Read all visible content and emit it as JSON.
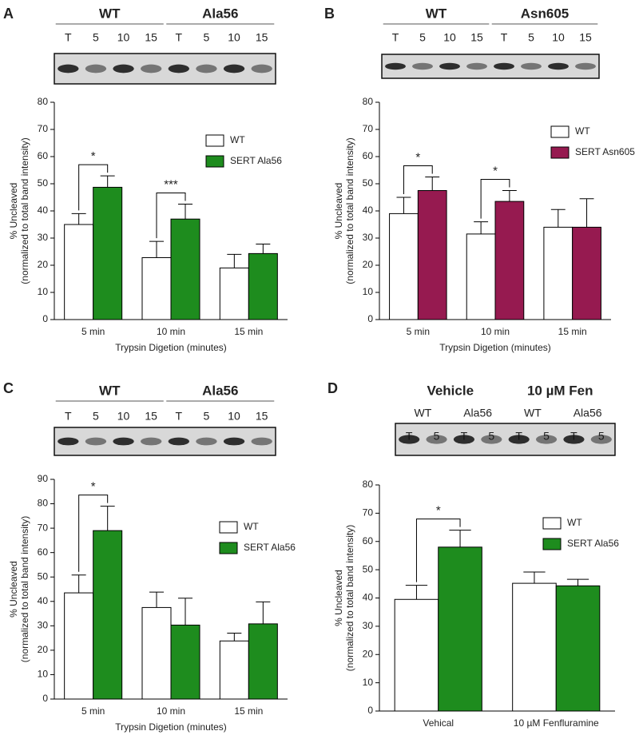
{
  "chart_data": [
    {
      "type": "bar",
      "panel": "A",
      "blot": {
        "groups": [
          {
            "label": "WT",
            "lanes": [
              "T",
              "5",
              "10",
              "15"
            ]
          },
          {
            "label": "Ala56",
            "lanes": [
              "T",
              "5",
              "10",
              "15"
            ]
          }
        ]
      },
      "y_label": [
        "% Uncleaved",
        "(normalized to total band intensity)"
      ],
      "x_label": "Trypsin Digetion (minutes)",
      "categories": [
        "5 min",
        "10 min",
        "15 min"
      ],
      "series": [
        {
          "name": "WT",
          "color": "#ffffff",
          "values": [
            35,
            22.8,
            19
          ],
          "errors": [
            4,
            6,
            5
          ]
        },
        {
          "name": "SERT Ala56",
          "color": "#1e8c1e",
          "values": [
            48.7,
            37,
            24.3
          ],
          "errors": [
            4.2,
            5.5,
            3.5
          ]
        }
      ],
      "ylim": [
        0,
        80
      ],
      "yticks": [
        0,
        10,
        20,
        30,
        40,
        50,
        60,
        70,
        80
      ],
      "annotations": [
        {
          "text": "*",
          "category": "5 min"
        },
        {
          "text": "***",
          "category": "10 min"
        }
      ]
    },
    {
      "type": "bar",
      "panel": "B",
      "blot": {
        "groups": [
          {
            "label": "WT",
            "lanes": [
              "T",
              "5",
              "10",
              "15"
            ]
          },
          {
            "label": "Asn605",
            "lanes": [
              "T",
              "5",
              "10",
              "15"
            ]
          }
        ]
      },
      "y_label": [
        "% Uncleaved",
        "(normalized to total band intensity)"
      ],
      "x_label": "Trypsin Digetion (minutes)",
      "categories": [
        "5 min",
        "10 min",
        "15 min"
      ],
      "series": [
        {
          "name": "WT",
          "color": "#ffffff",
          "values": [
            39,
            31.5,
            34
          ],
          "errors": [
            6,
            4.5,
            6.5
          ]
        },
        {
          "name": "SERT Asn605",
          "color": "#961a50",
          "values": [
            47.5,
            43.5,
            34
          ],
          "errors": [
            5,
            4,
            10.5
          ]
        }
      ],
      "ylim": [
        0,
        80
      ],
      "yticks": [
        0,
        10,
        20,
        30,
        40,
        50,
        60,
        70,
        80
      ],
      "annotations": [
        {
          "text": "*",
          "category": "5 min"
        },
        {
          "text": "*",
          "category": "10 min"
        }
      ]
    },
    {
      "type": "bar",
      "panel": "C",
      "blot": {
        "groups": [
          {
            "label": "WT",
            "lanes": [
              "T",
              "5",
              "10",
              "15"
            ]
          },
          {
            "label": "Ala56",
            "lanes": [
              "T",
              "5",
              "10",
              "15"
            ]
          }
        ]
      },
      "y_label": [
        "% Uncleaved",
        "(normalized to total band intensity)"
      ],
      "x_label": "Trypsin Digetion (minutes)",
      "categories": [
        "5 min",
        "10 min",
        "15 min"
      ],
      "series": [
        {
          "name": "WT",
          "color": "#ffffff",
          "values": [
            43.5,
            37.5,
            23.8
          ],
          "errors": [
            7.3,
            6.3,
            3.2
          ]
        },
        {
          "name": "SERT Ala56",
          "color": "#1e8c1e",
          "values": [
            69,
            30.3,
            30.8
          ],
          "errors": [
            10,
            11,
            9
          ]
        }
      ],
      "ylim": [
        0,
        90
      ],
      "yticks": [
        0,
        10,
        20,
        30,
        40,
        50,
        60,
        70,
        80,
        90
      ],
      "annotations": [
        {
          "text": "*",
          "category": "5 min"
        }
      ]
    },
    {
      "type": "bar",
      "panel": "D",
      "blot": {
        "groups": [
          {
            "label": "Vehicle",
            "subgroups": [
              {
                "label": "WT",
                "lanes": [
                  "T",
                  "5"
                ]
              },
              {
                "label": "Ala56",
                "lanes": [
                  "T",
                  "5"
                ]
              }
            ]
          },
          {
            "label": "10 µM Fen",
            "subgroups": [
              {
                "label": "WT",
                "lanes": [
                  "T",
                  "5"
                ]
              },
              {
                "label": "Ala56",
                "lanes": [
                  "T",
                  "5"
                ]
              }
            ]
          }
        ]
      },
      "y_label": [
        "% Uncleaved",
        "(normalized to total band intensity)"
      ],
      "categories": [
        "Vehical",
        "10 µM Fenfluramine"
      ],
      "series": [
        {
          "name": "WT",
          "color": "#ffffff",
          "values": [
            39.5,
            45.2
          ],
          "errors": [
            5,
            4
          ]
        },
        {
          "name": "SERT Ala56",
          "color": "#1e8c1e",
          "values": [
            58,
            44.3
          ],
          "errors": [
            6,
            2.3
          ]
        }
      ],
      "ylim": [
        0,
        80
      ],
      "yticks": [
        0,
        10,
        20,
        30,
        40,
        50,
        60,
        70,
        80
      ],
      "annotations": [
        {
          "text": "*",
          "category": "Vehical"
        }
      ]
    }
  ]
}
